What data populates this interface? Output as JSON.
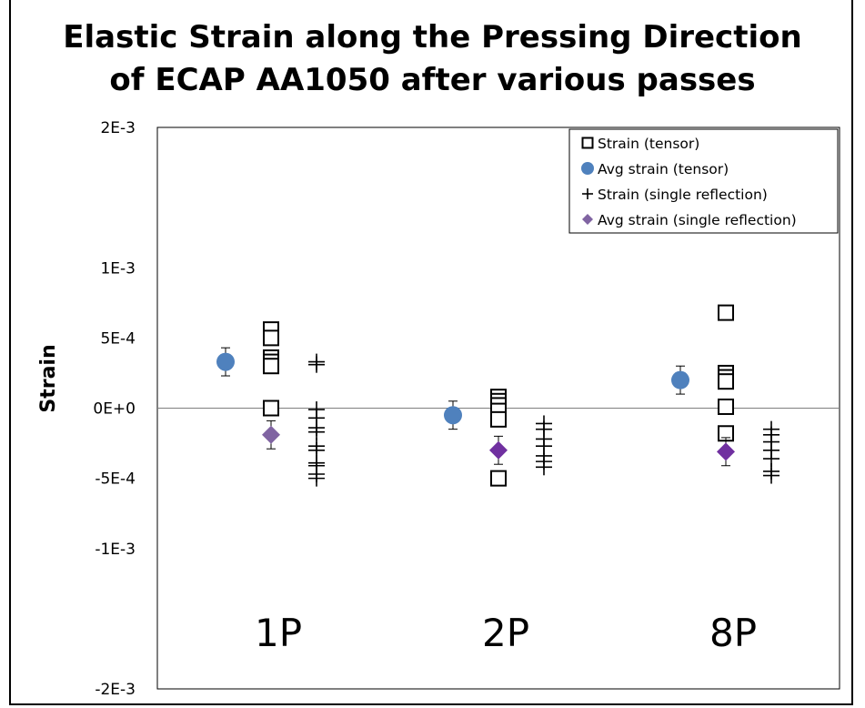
{
  "chart_data": {
    "type": "scatter",
    "title": [
      "Elastic Strain along the Pressing Direction",
      "of ECAP AA1050 after various passes"
    ],
    "ylabel": "Strain",
    "ylim": [
      -0.002,
      0.002
    ],
    "yticks": [
      {
        "value": 0.002,
        "label": "2E-3"
      },
      {
        "value": 0.001,
        "label": "1E-3"
      },
      {
        "value": 0.0005,
        "label": "5E-4"
      },
      {
        "value": 0.0,
        "label": "0E+0"
      },
      {
        "value": -0.0005,
        "label": "-5E-4"
      },
      {
        "value": -0.001,
        "label": "-1E-3"
      },
      {
        "value": -0.002,
        "label": "-2E-3"
      }
    ],
    "xlim": [
      0,
      3
    ],
    "grid": false,
    "zero_line": true,
    "group_labels": [
      {
        "label": "1P",
        "x": 0.5
      },
      {
        "label": "2P",
        "x": 1.5
      },
      {
        "label": "8P",
        "x": 2.5
      }
    ],
    "legend": {
      "position": "top-right",
      "entries": [
        {
          "label": "Strain (tensor)",
          "marker": "open-square"
        },
        {
          "label": "Avg strain (tensor)",
          "marker": "circle"
        },
        {
          "label": "Strain (single reflection)",
          "marker": "plus"
        },
        {
          "label": "Avg strain (single reflection)",
          "marker": "diamond"
        }
      ]
    },
    "series": [
      {
        "name": "Strain (tensor)",
        "marker": "open-square",
        "points": [
          {
            "x": 0.5,
            "y": 0.00056
          },
          {
            "x": 0.5,
            "y": 0.0005
          },
          {
            "x": 0.5,
            "y": 0.00036
          },
          {
            "x": 0.5,
            "y": 0.00033
          },
          {
            "x": 0.5,
            "y": 0.0003
          },
          {
            "x": 0.5,
            "y": 0.0
          },
          {
            "x": 1.5,
            "y": 8e-05
          },
          {
            "x": 1.5,
            "y": 5e-05
          },
          {
            "x": 1.5,
            "y": 2e-05
          },
          {
            "x": 1.5,
            "y": -2e-05
          },
          {
            "x": 1.5,
            "y": -8e-05
          },
          {
            "x": 1.5,
            "y": -0.0005
          },
          {
            "x": 2.5,
            "y": 0.00068
          },
          {
            "x": 2.5,
            "y": 0.00025
          },
          {
            "x": 2.5,
            "y": 0.00022
          },
          {
            "x": 2.5,
            "y": 0.00019
          },
          {
            "x": 2.5,
            "y": 1e-05
          },
          {
            "x": 2.5,
            "y": -0.00018
          }
        ]
      },
      {
        "name": "Avg strain (tensor)",
        "marker": "circle",
        "color": "#4F81BD",
        "points": [
          {
            "x": 0.3,
            "y": 0.00033,
            "err": 0.0001
          },
          {
            "x": 1.3,
            "y": -5e-05,
            "err": 0.0001
          },
          {
            "x": 2.3,
            "y": 0.0002,
            "err": 0.0001
          }
        ]
      },
      {
        "name": "Strain (single reflection)",
        "marker": "plus",
        "points": [
          {
            "x": 0.7,
            "y": 0.00033
          },
          {
            "x": 0.7,
            "y": 0.00031
          },
          {
            "x": 0.7,
            "y": -1e-05
          },
          {
            "x": 0.7,
            "y": -7e-05
          },
          {
            "x": 0.7,
            "y": -0.00014
          },
          {
            "x": 0.7,
            "y": -0.00017
          },
          {
            "x": 0.7,
            "y": -0.00027
          },
          {
            "x": 0.7,
            "y": -0.0003
          },
          {
            "x": 0.7,
            "y": -0.00039
          },
          {
            "x": 0.7,
            "y": -0.00041
          },
          {
            "x": 0.7,
            "y": -0.00047
          },
          {
            "x": 0.7,
            "y": -0.0005
          },
          {
            "x": 1.7,
            "y": -0.00011
          },
          {
            "x": 1.7,
            "y": -0.00015
          },
          {
            "x": 1.7,
            "y": -0.00022
          },
          {
            "x": 1.7,
            "y": -0.00027
          },
          {
            "x": 1.7,
            "y": -0.00034
          },
          {
            "x": 1.7,
            "y": -0.00038
          },
          {
            "x": 1.7,
            "y": -0.00042
          },
          {
            "x": 2.7,
            "y": -0.00015
          },
          {
            "x": 2.7,
            "y": -0.00019
          },
          {
            "x": 2.7,
            "y": -0.00024
          },
          {
            "x": 2.7,
            "y": -0.0003
          },
          {
            "x": 2.7,
            "y": -0.00036
          },
          {
            "x": 2.7,
            "y": -0.00045
          },
          {
            "x": 2.7,
            "y": -0.00048
          }
        ]
      },
      {
        "name": "Avg strain (single reflection)",
        "marker": "diamond",
        "points": [
          {
            "x": 0.5,
            "y": -0.00019,
            "err": 0.0001,
            "color": "#8064A2"
          },
          {
            "x": 1.5,
            "y": -0.0003,
            "err": 0.0001,
            "color": "#7030A0"
          },
          {
            "x": 2.5,
            "y": -0.00031,
            "err": 0.0001,
            "color": "#7030A0"
          }
        ]
      }
    ]
  }
}
